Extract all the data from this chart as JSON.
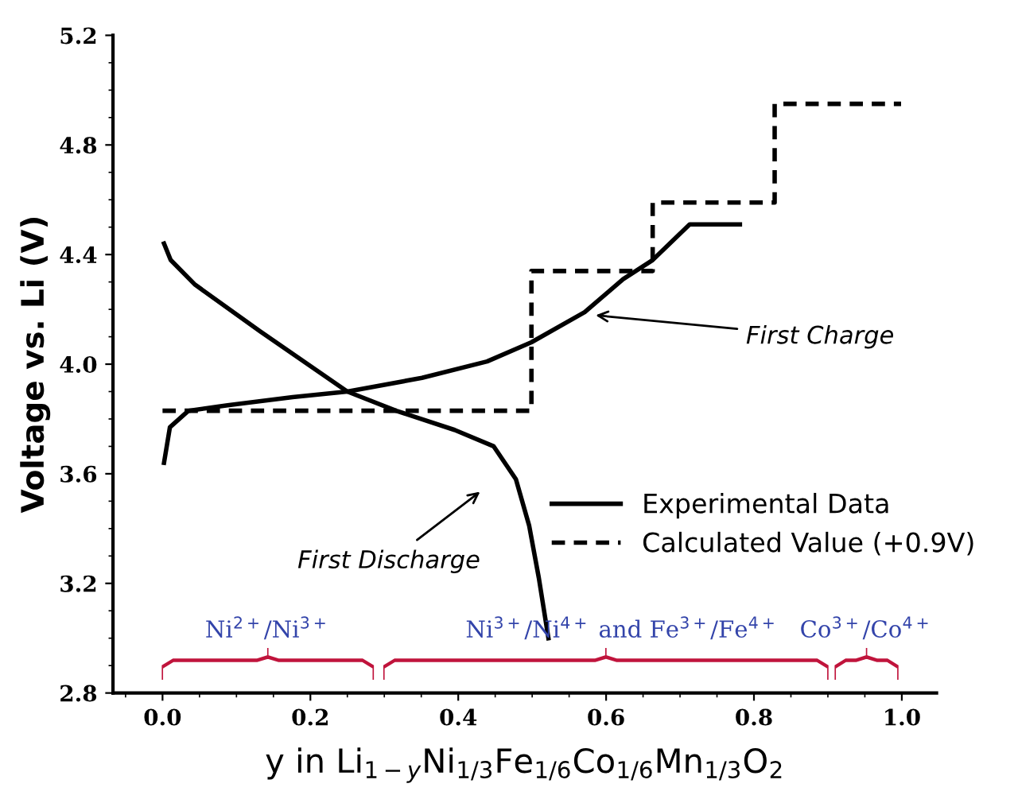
{
  "chart_data": {
    "type": "line",
    "xlabel": "y in Li$_{1−y}$Ni$_{1/3}$Fe$_{1/6}$Co$_{1/6}$Mn$_{1/3}$O$_{2}$",
    "ylabel": "Voltage vs. Li (V)",
    "xlim": [
      -0.067,
      1.047
    ],
    "ylim": [
      2.8,
      5.2
    ],
    "xticks": [
      {
        "value": 0,
        "label": "0.0"
      },
      0.2,
      0.4,
      0.6,
      0.8,
      {
        "value": 1,
        "label": "1.0"
      }
    ],
    "yticks": [
      2.8,
      3.2,
      3.6,
      {
        "value": 4,
        "label": "4.0"
      },
      4.4,
      4.8,
      5.2
    ],
    "grid": false,
    "legend": "lower right",
    "marker": "none",
    "series": [
      {
        "name": "Experimental Data",
        "line_style": "solid",
        "color": "#000000",
        "x": [
          0.002,
          0.01,
          0.035,
          0.088,
          0.176,
          0.25,
          0.351,
          0.439,
          0.499,
          0.571,
          0.623,
          0.663,
          0.713,
          0.781
        ],
        "values": [
          3.64,
          3.77,
          3.83,
          3.85,
          3.88,
          3.9,
          3.95,
          4.01,
          4.08,
          4.19,
          4.31,
          4.38,
          4.51,
          4.51
        ]
      },
      {
        "line_style": "solid",
        "color": "#000000",
        "x": [
          0.002,
          0.011,
          0.044,
          0.132,
          0.25,
          0.316,
          0.395,
          0.448,
          0.478,
          0.496,
          0.509,
          0.522
        ],
        "values": [
          4.44,
          4.38,
          4.29,
          4.12,
          3.9,
          3.83,
          3.76,
          3.7,
          3.58,
          3.41,
          3.22,
          3.0
        ]
      },
      {
        "name": "Calculated Value (+0.9V)",
        "type": "step",
        "line_style": "dashed",
        "color": "#000000",
        "x": [
          0.0,
          0.499,
          0.663,
          0.828,
          0.999
        ],
        "values": [
          3.83,
          4.34,
          4.59,
          4.95,
          4.95
        ]
      }
    ],
    "annotations": [
      {
        "text": "First Charge",
        "x": 0.58,
        "y": 4.18
      },
      "First Discharge",
      "Ni$^{2+}$/Ni$^{3+}$",
      "Ni$^{3+}$/Ni$^{4+}$ and Fe$^{3+}$/Fe$^{4+}$",
      "Co$^{3+}$/Co$^{4+}$"
    ]
  }
}
